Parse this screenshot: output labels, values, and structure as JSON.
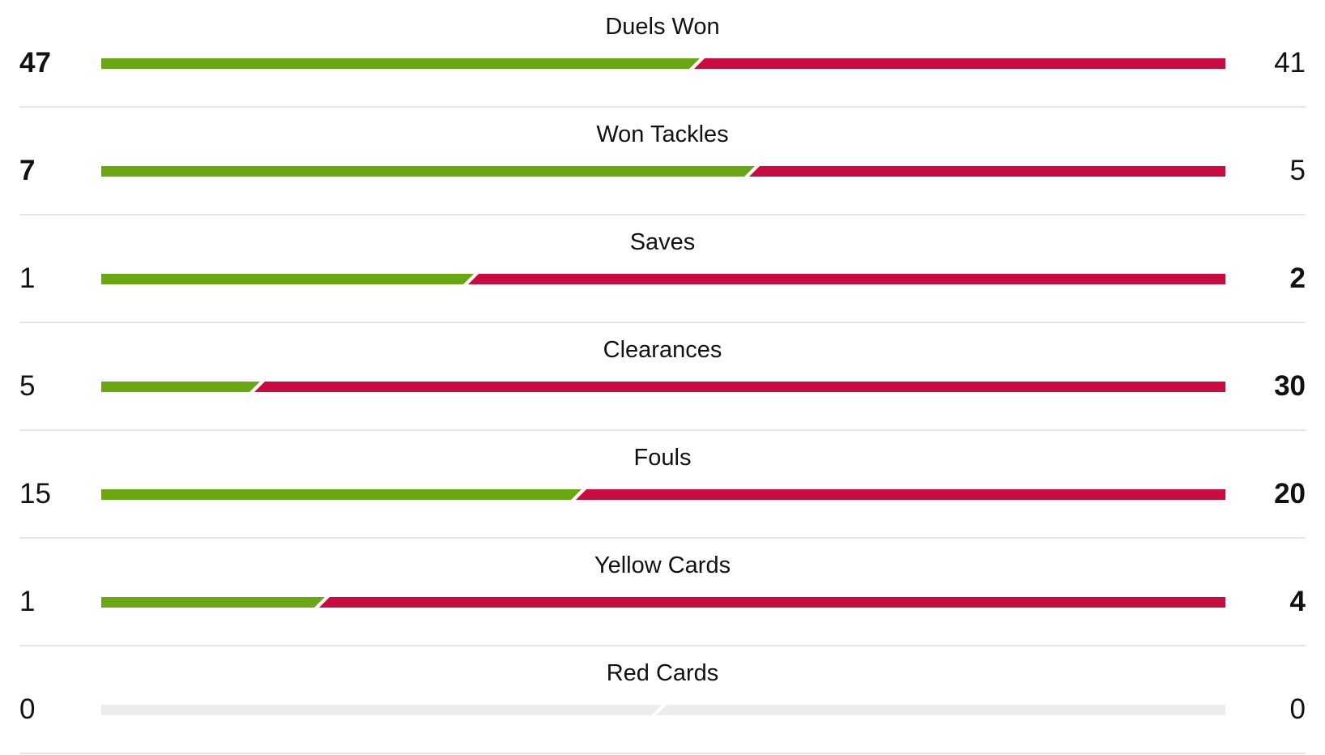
{
  "colors": {
    "home": "#6aa812",
    "away": "#c80c3f",
    "empty": "#ececec"
  },
  "stats": [
    {
      "label": "Duels Won",
      "home": 47,
      "away": 41,
      "home_share": 0.534
    },
    {
      "label": "Won Tackles",
      "home": 7,
      "away": 5,
      "home_share": 0.583
    },
    {
      "label": "Saves",
      "home": 1,
      "away": 2,
      "home_share": 0.333
    },
    {
      "label": "Clearances",
      "home": 5,
      "away": 30,
      "home_share": 0.143
    },
    {
      "label": "Fouls",
      "home": 15,
      "away": 20,
      "home_share": 0.429
    },
    {
      "label": "Yellow Cards",
      "home": 1,
      "away": 4,
      "home_share": 0.2
    },
    {
      "label": "Red Cards",
      "home": 0,
      "away": 0,
      "home_share": 0.5
    }
  ]
}
